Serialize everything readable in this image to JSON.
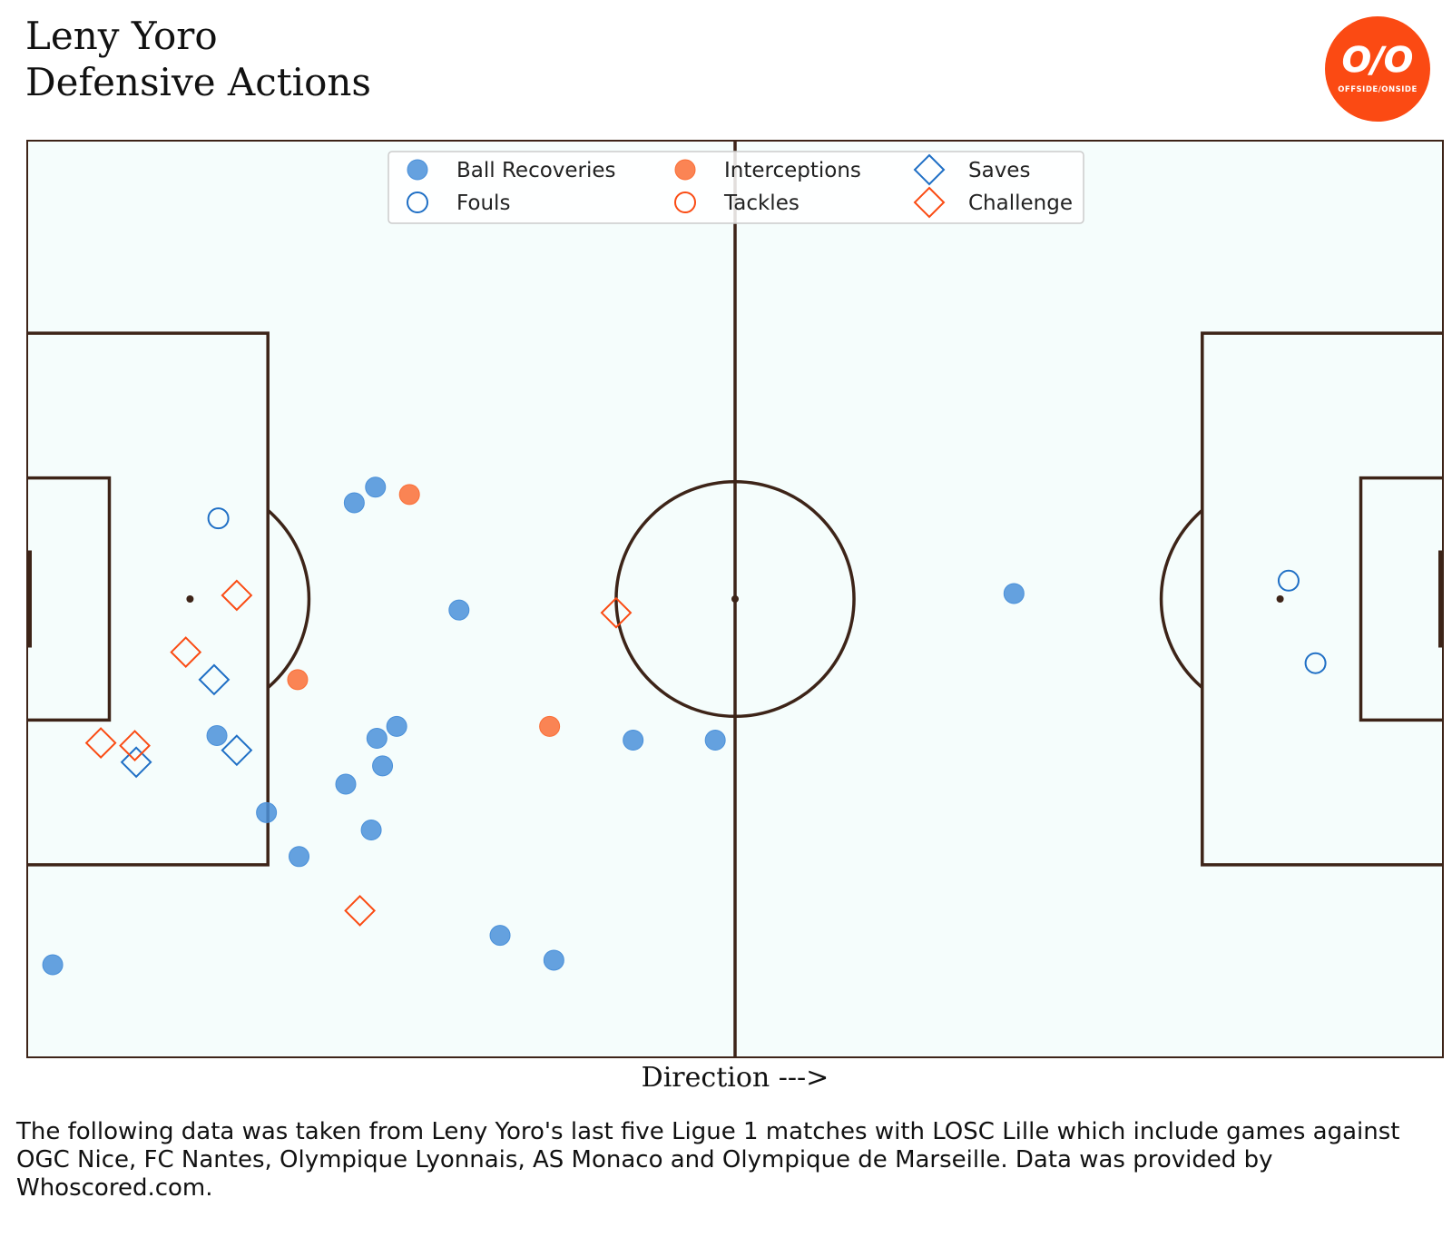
{
  "header": {
    "title_line1": "Leny Yoro",
    "title_line2": "Defensive Actions"
  },
  "logo": {
    "brand_mark": "O/O",
    "brand_text": "OFFSIDE/ONSIDE",
    "color": "#fb4a13"
  },
  "footnote": "The following data was taken from Leny Yoro's last five Ligue 1 matches with LOSC Lille which include games against OGC Nice, FC Nantes, Olympique Lyonnais, AS Monaco and Olympique de Marseille. Data was provided by Whoscored.com.",
  "chart_data": {
    "type": "scatter",
    "title": "Leny Yoro Defensive Actions",
    "xlabel": "Direction --->",
    "ylabel": "",
    "xlim": [
      0,
      100
    ],
    "ylim": [
      0,
      100
    ],
    "grid": false,
    "legend_placement": "top-center",
    "pitch_color": "#f5fdfc",
    "line_color": "#3d2418",
    "series": [
      {
        "name": "Ball Recoveries",
        "marker": "circle-filled",
        "color": "#4a90d9",
        "points": [
          [
            24.6,
            62.2
          ],
          [
            23.1,
            60.5
          ],
          [
            30.5,
            48.8
          ],
          [
            13.4,
            35.1
          ],
          [
            26.1,
            36.1
          ],
          [
            24.7,
            34.8
          ],
          [
            25.1,
            31.8
          ],
          [
            22.5,
            29.8
          ],
          [
            16.9,
            26.7
          ],
          [
            24.3,
            24.8
          ],
          [
            19.2,
            21.9
          ],
          [
            42.8,
            34.6
          ],
          [
            48.6,
            34.6
          ],
          [
            33.4,
            13.3
          ],
          [
            37.2,
            10.6
          ],
          [
            1.8,
            10.1
          ],
          [
            69.7,
            50.6
          ]
        ]
      },
      {
        "name": "Fouls",
        "marker": "circle-open",
        "color": "#1f6fc5",
        "points": [
          [
            13.5,
            58.8
          ],
          [
            89.1,
            52.0
          ],
          [
            91.0,
            43.0
          ]
        ]
      },
      {
        "name": "Interceptions",
        "marker": "circle-filled",
        "color": "#fa6e36",
        "points": [
          [
            27.0,
            61.4
          ],
          [
            19.1,
            41.2
          ],
          [
            36.9,
            36.1
          ]
        ]
      },
      {
        "name": "Tackles",
        "marker": "circle-open",
        "color": "#fa4b13",
        "points": []
      },
      {
        "name": "Saves",
        "marker": "diamond-open",
        "color": "#1f6fc5",
        "points": [
          [
            13.2,
            41.2
          ],
          [
            14.8,
            33.5
          ],
          [
            7.7,
            32.2
          ]
        ]
      },
      {
        "name": "Challenge",
        "marker": "diamond-open",
        "color": "#fa4b13",
        "points": [
          [
            14.8,
            50.4
          ],
          [
            11.2,
            44.2
          ],
          [
            41.6,
            48.5
          ],
          [
            5.2,
            34.3
          ],
          [
            7.6,
            34.0
          ],
          [
            23.5,
            16.0
          ]
        ]
      }
    ]
  }
}
